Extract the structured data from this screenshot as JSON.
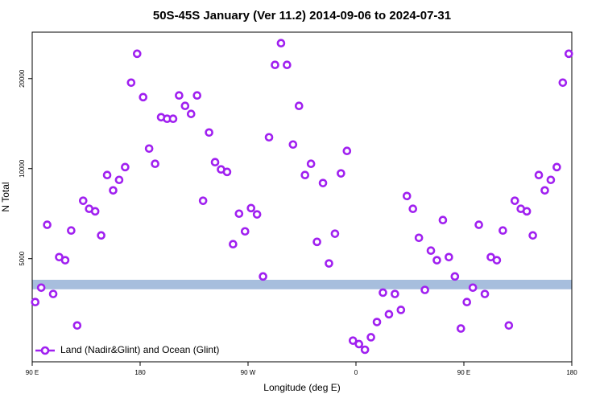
{
  "chart_data": {
    "type": "scatter",
    "title": "50S-45S January (Ver 11.2)   2014-09-06 to 2024-07-31",
    "x_label": "Longitude (deg E)",
    "y_label": "N Total",
    "log_y": true,
    "xlim": [
      90,
      540
    ],
    "ylim": [
      2260,
      28600
    ],
    "xticks": [
      {
        "value": 90,
        "label": "90 E"
      },
      180,
      {
        "value": 270,
        "label": "90 W"
      },
      {
        "value": 360,
        "label": "0"
      },
      {
        "value": 450,
        "label": "90 E"
      },
      {
        "value": 540,
        "label": "180"
      }
    ],
    "yticks": [
      5000,
      10000,
      20000
    ],
    "band": {
      "range": [
        3950,
        4250
      ],
      "color": "#a7bedd"
    },
    "legend": "bottom-left",
    "x": [
      92.5,
      97.5,
      102.5,
      107.5,
      112.5,
      117.5,
      122.5,
      127.5,
      132.5,
      137.5,
      142.5,
      147.5,
      152.5,
      157.5,
      162.5,
      167.5,
      172.5,
      177.5,
      182.5,
      187.5,
      192.5,
      197.5,
      202.5,
      207.5,
      212.5,
      217.5,
      222.5,
      227.5,
      232.5,
      237.5,
      242.5,
      247.5,
      252.5,
      257.5,
      262.5,
      267.5,
      272.5,
      277.5,
      282.5,
      287.5,
      292.5,
      297.5,
      302.5,
      307.5,
      312.5,
      317.5,
      322.5,
      327.5,
      332.5,
      337.5,
      342.5,
      347.5,
      352.5,
      357.5,
      362.5,
      367.5,
      372.5,
      377.5,
      382.5,
      387.5,
      392.5,
      397.5,
      402.5,
      407.5,
      412.5,
      417.5,
      422.5,
      427.5,
      432.5,
      437.5,
      442.5,
      447.5,
      452.5,
      457.5,
      462.5,
      467.5,
      472.5,
      477.5,
      482.5,
      487.5,
      492.5,
      497.5,
      502.5,
      507.5,
      512.5,
      517.5,
      522.5,
      527.5,
      532.5,
      537.5
    ],
    "series": [
      {
        "name": "Land (Nadir&Glint) and Ocean (Glint)",
        "color": "#a020f0",
        "values": [
          3580,
          4000,
          6490,
          3810,
          5060,
          4940,
          6210,
          2990,
          7810,
          7340,
          7200,
          5980,
          9520,
          8460,
          9170,
          10120,
          19390,
          24220,
          17340,
          11670,
          10380,
          14860,
          14680,
          14680,
          17570,
          16210,
          15240,
          17570,
          7810,
          13210,
          10510,
          9940,
          9750,
          5590,
          7070,
          6170,
          7380,
          7030,
          4360,
          12730,
          22230,
          26270,
          22230,
          12040,
          16210,
          9520,
          10380,
          5690,
          8950,
          4820,
          6060,
          9640,
          11460,
          2660,
          2590,
          2480,
          2730,
          3070,
          3850,
          3260,
          3810,
          3370,
          8100,
          7340,
          5870,
          3930,
          5320,
          4940,
          6730,
          5060,
          4360,
          2920,
          3580,
          4000,
          6490,
          3810,
          5060,
          4940,
          6210,
          2990,
          7810,
          7340,
          7200,
          5980,
          9520,
          8460,
          9170,
          10120,
          19390,
          24220
        ]
      }
    ]
  }
}
